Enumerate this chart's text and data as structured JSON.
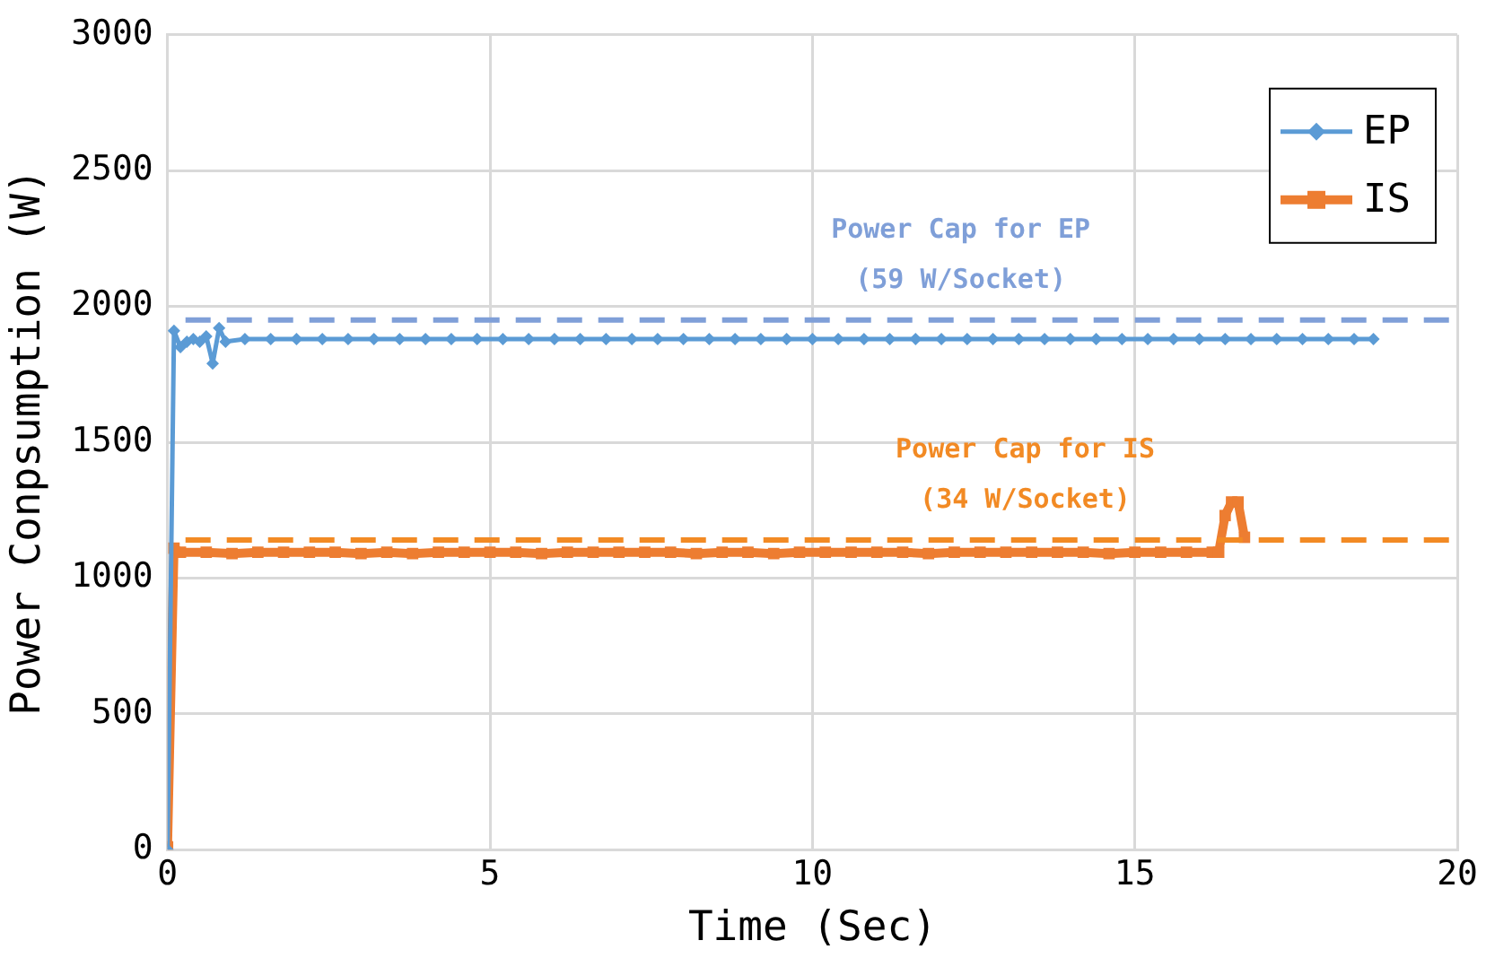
{
  "chart_data": {
    "type": "line",
    "xlabel": "Time (Sec)",
    "ylabel": "Power Conpsumption (W)",
    "xlim": [
      0,
      20
    ],
    "xticks": [
      0,
      5,
      10,
      15,
      20
    ],
    "ylim": [
      0,
      3000
    ],
    "yticks": [
      0,
      500,
      1000,
      1500,
      2000,
      2500,
      3000
    ],
    "grid": true,
    "legend": "top right",
    "line_style": "solid",
    "series": [
      {
        "name": "EP",
        "color": "#5b9bd5",
        "marker": "diamond",
        "x": [
          0,
          0.1,
          0.2,
          0.3,
          0.4,
          0.5,
          0.6,
          0.7,
          0.8,
          0.9,
          1.2,
          1.6,
          2,
          2.4,
          2.8,
          3.2,
          3.6,
          4,
          4.4,
          4.8,
          5.2,
          5.6,
          6,
          6.4,
          6.8,
          7.2,
          7.6,
          8,
          8.4,
          8.8,
          9.2,
          9.6,
          10,
          10.4,
          10.8,
          11.2,
          11.6,
          12,
          12.4,
          12.8,
          13.2,
          13.6,
          14,
          14.4,
          14.8,
          15.2,
          15.6,
          16,
          16.4,
          16.8,
          17.2,
          17.6,
          18,
          18.4,
          18.7
        ],
        "values": [
          0,
          1910,
          1850,
          1870,
          1880,
          1870,
          1890,
          1790,
          1920,
          1870,
          1880,
          1880,
          1880,
          1880,
          1880,
          1880,
          1880,
          1880,
          1880,
          1880,
          1880,
          1880,
          1880,
          1880,
          1880,
          1880,
          1880,
          1880,
          1880,
          1880,
          1880,
          1880,
          1880,
          1880,
          1880,
          1880,
          1880,
          1880,
          1880,
          1880,
          1880,
          1880,
          1880,
          1880,
          1880,
          1880,
          1880,
          1880,
          1880,
          1880,
          1880,
          1880,
          1880,
          1880,
          1880
        ]
      },
      {
        "name": "IS",
        "color": "#ed7d31",
        "marker": "square",
        "x": [
          0,
          0.1,
          0.2,
          0.6,
          1,
          1.4,
          1.8,
          2.2,
          2.6,
          3,
          3.4,
          3.8,
          4.2,
          4.6,
          5,
          5.4,
          5.8,
          6.2,
          6.6,
          7,
          7.4,
          7.8,
          8.2,
          8.6,
          9,
          9.4,
          9.8,
          10.2,
          10.6,
          11,
          11.4,
          11.8,
          12.2,
          12.6,
          13,
          13.4,
          13.8,
          14.2,
          14.6,
          15,
          15.4,
          15.8,
          16.2,
          16.3,
          16.4,
          16.5,
          16.6,
          16.7
        ],
        "values": [
          10,
          1110,
          1095,
          1095,
          1090,
          1095,
          1095,
          1095,
          1095,
          1090,
          1095,
          1090,
          1095,
          1095,
          1095,
          1095,
          1090,
          1095,
          1095,
          1095,
          1095,
          1095,
          1090,
          1095,
          1095,
          1090,
          1095,
          1095,
          1095,
          1095,
          1095,
          1090,
          1095,
          1095,
          1095,
          1095,
          1095,
          1095,
          1090,
          1095,
          1095,
          1095,
          1095,
          1095,
          1230,
          1280,
          1280,
          1150
        ]
      }
    ],
    "ref_lines": [
      {
        "axis": "y",
        "value": 1950,
        "color": "#7f9fd8",
        "line_style": "dashed",
        "label": "Power Cap for EP\n(59 W/Socket)"
      },
      {
        "axis": "y",
        "value": 1140,
        "color": "#f28a24",
        "line_style": "dashed",
        "label": "Power Cap for IS\n(34 W/Socket)"
      }
    ]
  }
}
